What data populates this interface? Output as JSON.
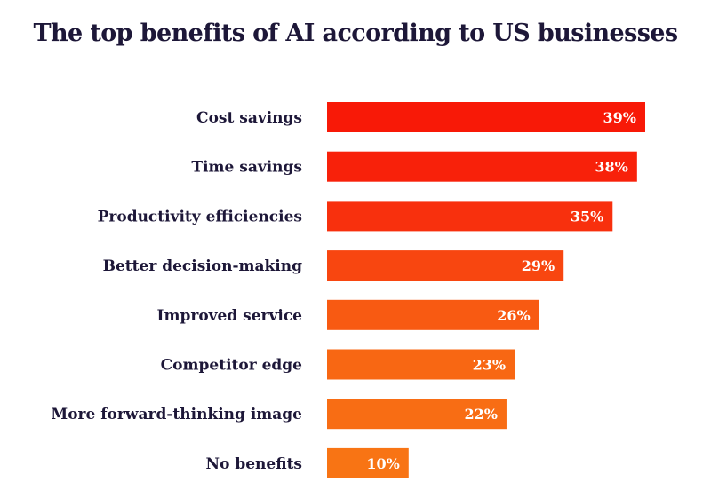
{
  "chart_data": {
    "type": "bar",
    "orientation": "horizontal",
    "title": "The top benefits of AI according to US businesses",
    "categories": [
      "Cost savings",
      "Time savings",
      "Productivity efficiencies",
      "Better decision-making",
      "Improved service",
      "Competitor edge",
      "More forward-thinking image",
      "No benefits"
    ],
    "values": [
      39,
      38,
      35,
      29,
      26,
      23,
      22,
      10
    ],
    "value_labels": [
      "39%",
      "38%",
      "35%",
      "29%",
      "26%",
      "23%",
      "22%",
      "10%"
    ],
    "bar_colors": [
      "#f81907",
      "#f8210a",
      "#f8300d",
      "#f84610",
      "#f85a12",
      "#f86713",
      "#f86d14",
      "#f87414"
    ],
    "xlabel": "",
    "ylabel": "",
    "xlim": [
      0,
      39
    ],
    "grid": false,
    "legend": "none"
  },
  "colors": {
    "title": "#1d1738",
    "labels": "#1d1738",
    "value_text": "#ffffff",
    "background": "#ffffff"
  }
}
